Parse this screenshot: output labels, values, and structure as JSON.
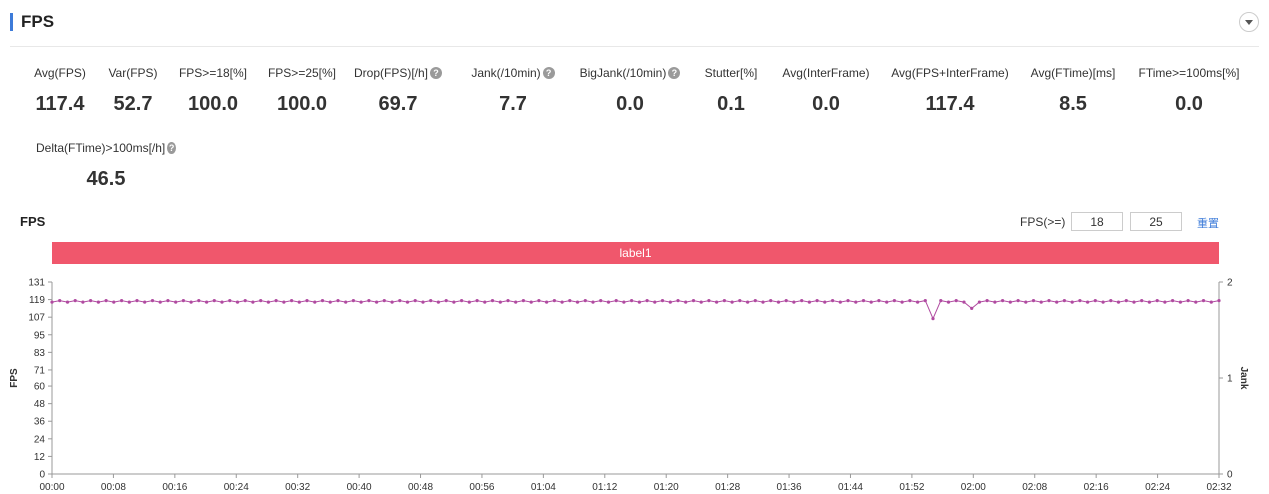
{
  "header": {
    "title": "FPS"
  },
  "metrics_row1": [
    {
      "label": "Avg(FPS)",
      "value": "117.4",
      "help": false
    },
    {
      "label": "Var(FPS)",
      "value": "52.7",
      "help": false
    },
    {
      "label": "FPS>=18[%]",
      "value": "100.0",
      "help": false
    },
    {
      "label": "FPS>=25[%]",
      "value": "100.0",
      "help": false
    },
    {
      "label": "Drop(FPS)[/h]",
      "value": "69.7",
      "help": true
    },
    {
      "label": "Jank(/10min)",
      "value": "7.7",
      "help": true
    },
    {
      "label": "BigJank(/10min)",
      "value": "0.0",
      "help": true
    },
    {
      "label": "Stutter[%]",
      "value": "0.1",
      "help": false
    },
    {
      "label": "Avg(InterFrame)",
      "value": "0.0",
      "help": false
    },
    {
      "label": "Avg(FPS+InterFrame)",
      "value": "117.4",
      "help": false
    },
    {
      "label": "Avg(FTime)[ms]",
      "value": "8.5",
      "help": false
    },
    {
      "label": "FTime>=100ms[%]",
      "value": "0.0",
      "help": false
    }
  ],
  "metrics_row2": [
    {
      "label": "Delta(FTime)>100ms[/h]",
      "value": "46.5",
      "help": true
    }
  ],
  "chart_section": {
    "title": "FPS",
    "threshold_label": "FPS(>=)",
    "threshold_values": [
      "18",
      "25"
    ],
    "reset_label": "重置",
    "band_label": "label1"
  },
  "chart_data": {
    "type": "line",
    "ylabel": "FPS",
    "y2label": "Jank",
    "ylim": [
      0,
      131
    ],
    "yticks": [
      0,
      12,
      24,
      36,
      48,
      60,
      71,
      83,
      95,
      107,
      119,
      131
    ],
    "y2lim": [
      0,
      2
    ],
    "y2ticks": [
      0,
      1,
      2
    ],
    "xlim": [
      0,
      152
    ],
    "xticks": [
      "00:00",
      "00:08",
      "00:16",
      "00:24",
      "00:32",
      "00:40",
      "00:48",
      "00:56",
      "01:04",
      "01:12",
      "01:20",
      "01:28",
      "01:36",
      "01:44",
      "01:52",
      "02:00",
      "02:08",
      "02:16",
      "02:24",
      "02:32"
    ],
    "series": [
      {
        "name": "",
        "color": "#b04aa0",
        "baseline": 118,
        "x_start": 0,
        "x_end": 152,
        "points": 152,
        "dips": [
          {
            "x": 115,
            "value": 106
          },
          {
            "x": 120,
            "value": 113
          }
        ]
      }
    ]
  },
  "colors": {
    "accent": "#3d7bd9",
    "band": "#f0576c",
    "line": "#b04aa0"
  }
}
